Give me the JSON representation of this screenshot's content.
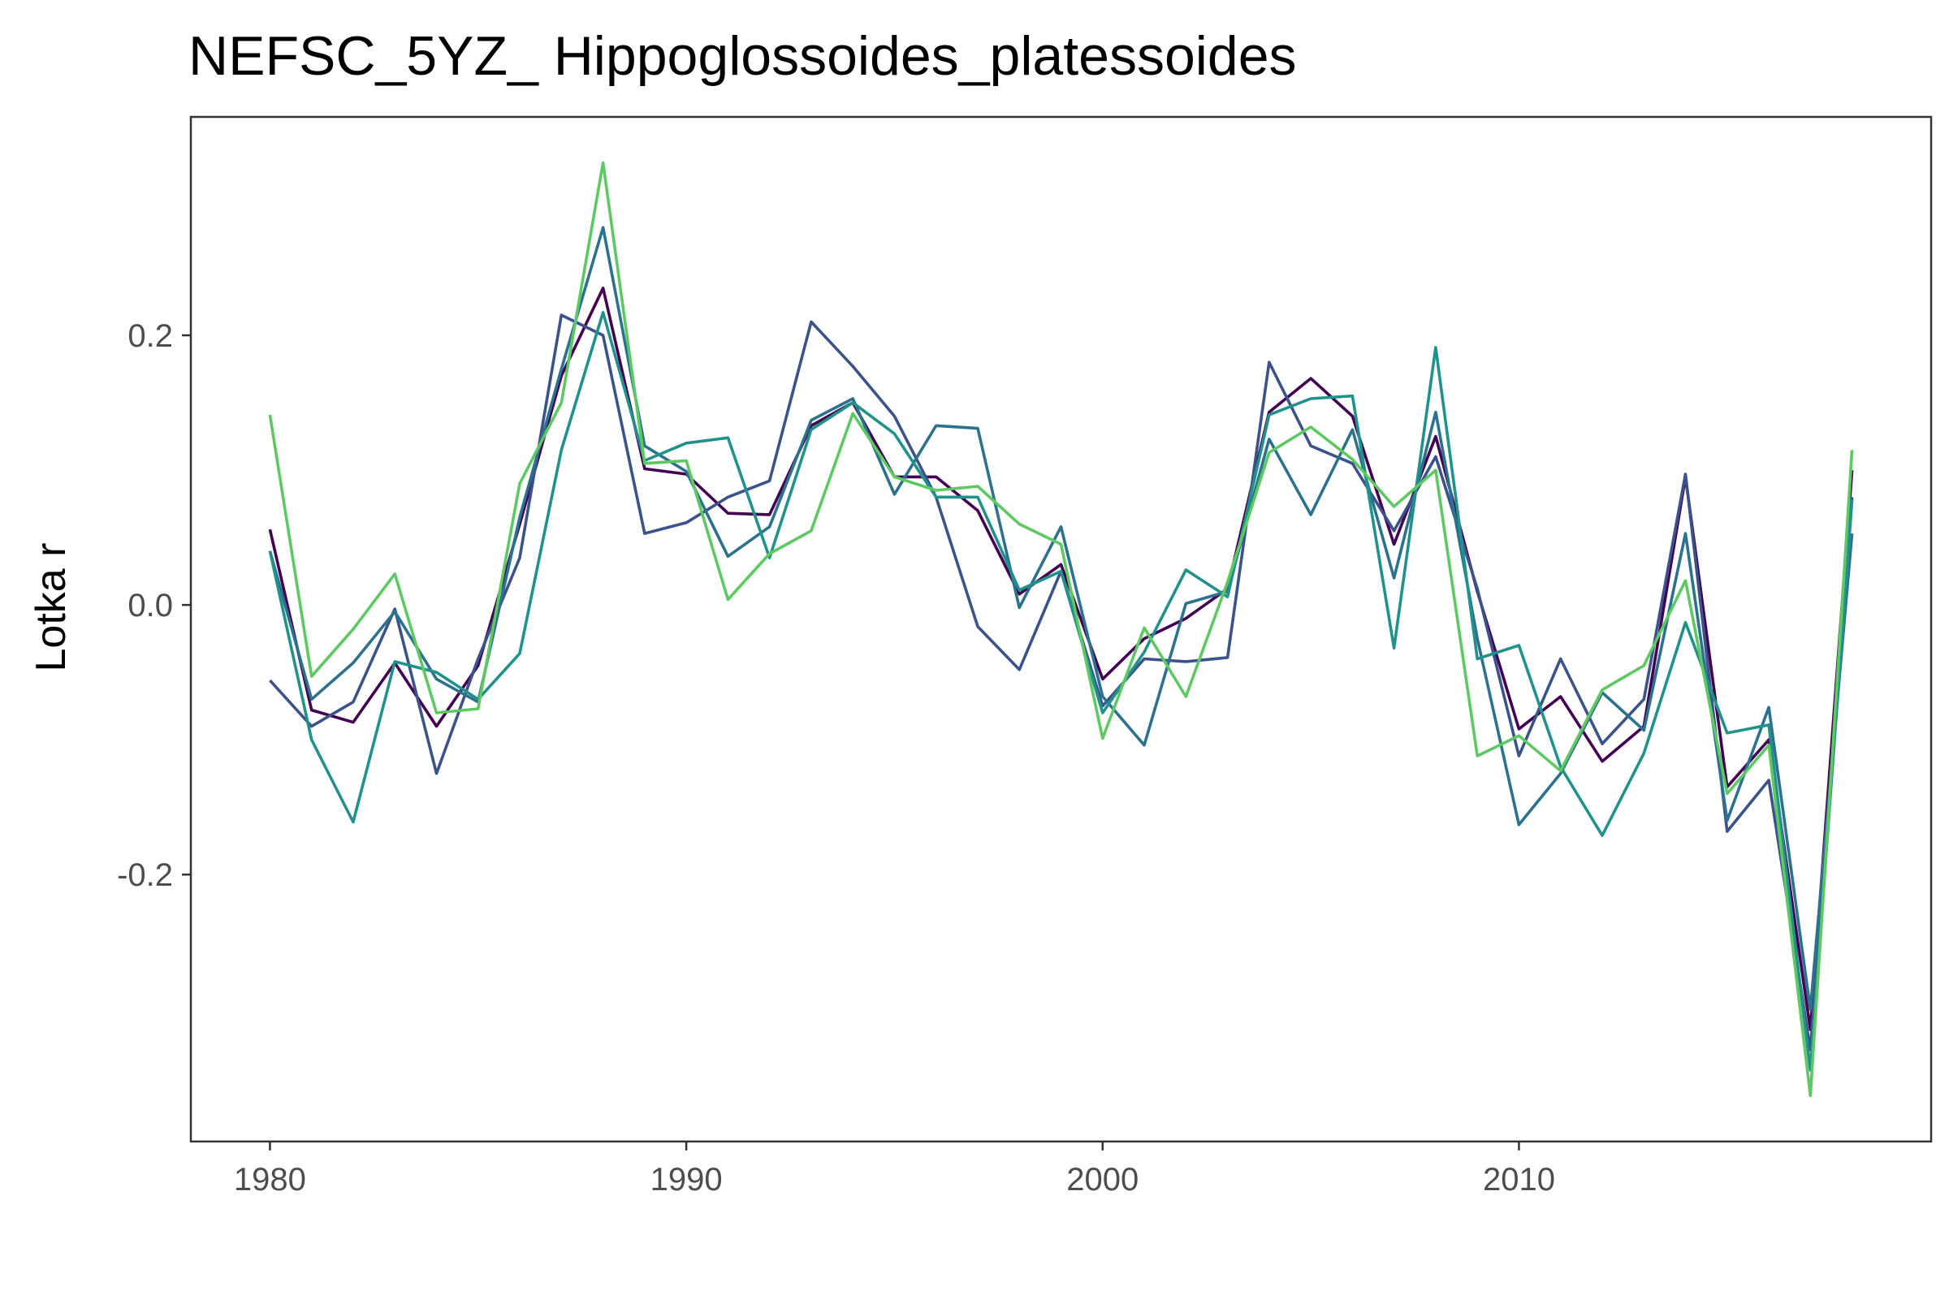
{
  "chart_data": {
    "type": "line",
    "title": "NEFSC_5YZ_ Hippoglossoides_platessoides",
    "xlabel": "",
    "ylabel": "Lotka r",
    "xlim": [
      1978.1,
      2019.9
    ],
    "ylim": [
      -0.398,
      0.362
    ],
    "x_ticks": [
      1980,
      1990,
      2000,
      2010
    ],
    "x_tick_labels": [
      "1980",
      "1990",
      "2000",
      "2010"
    ],
    "y_ticks": [
      -0.2,
      0.0,
      0.2
    ],
    "y_tick_labels": [
      "-0.2",
      "0.0",
      "0.2"
    ],
    "grid": false,
    "legend": "none",
    "x": [
      1980,
      1981,
      1982,
      1983,
      1984,
      1985,
      1986,
      1987,
      1988,
      1989,
      1990,
      1991,
      1992,
      1993,
      1994,
      1995,
      1996,
      1997,
      1998,
      1999,
      2000,
      2001,
      2002,
      2003,
      2004,
      2005,
      2006,
      2007,
      2008,
      2009,
      2010,
      2011,
      2012,
      2013,
      2014,
      2015,
      2016,
      2017,
      2018
    ],
    "series": [
      {
        "color": "#440154",
        "values": [
          0.056,
          -0.078,
          -0.087,
          -0.043,
          -0.09,
          -0.045,
          0.06,
          0.17,
          0.235,
          0.101,
          0.097,
          0.068,
          0.067,
          0.133,
          0.15,
          0.095,
          0.095,
          0.07,
          0.008,
          0.03,
          -0.055,
          -0.025,
          -0.01,
          0.012,
          0.143,
          0.168,
          0.14,
          0.045,
          0.125,
          0.01,
          -0.092,
          -0.068,
          -0.116,
          -0.09,
          0.095,
          -0.135,
          -0.1,
          -0.315,
          0.1
        ]
      },
      {
        "color": "#3b528b",
        "values": [
          -0.056,
          -0.09,
          -0.072,
          -0.003,
          -0.125,
          -0.04,
          0.035,
          0.215,
          0.2,
          0.053,
          0.061,
          0.08,
          0.092,
          0.21,
          0.177,
          0.14,
          0.08,
          -0.016,
          -0.048,
          0.025,
          -0.075,
          -0.04,
          -0.042,
          -0.039,
          0.18,
          0.118,
          0.105,
          0.055,
          0.11,
          0.012,
          -0.112,
          -0.04,
          -0.103,
          -0.07,
          0.097,
          -0.168,
          -0.13,
          -0.33,
          0.08
        ]
      },
      {
        "color": "#2c728e",
        "values": [
          0.04,
          -0.07,
          -0.043,
          -0.005,
          -0.055,
          -0.072,
          0.065,
          0.175,
          0.28,
          0.118,
          0.099,
          0.036,
          0.058,
          0.137,
          0.153,
          0.082,
          0.133,
          0.131,
          -0.002,
          0.058,
          -0.068,
          -0.104,
          0.001,
          0.01,
          0.123,
          0.067,
          0.13,
          0.02,
          0.143,
          -0.025,
          -0.163,
          -0.125,
          -0.065,
          -0.093,
          0.053,
          -0.16,
          -0.076,
          -0.3,
          0.053
        ]
      },
      {
        "color": "#21918c",
        "values": [
          0.04,
          -0.1,
          -0.161,
          -0.042,
          -0.05,
          -0.07,
          -0.036,
          0.115,
          0.217,
          0.107,
          0.12,
          0.124,
          0.035,
          0.13,
          0.15,
          0.127,
          0.08,
          0.08,
          0.011,
          0.025,
          -0.08,
          -0.035,
          0.026,
          0.006,
          0.141,
          0.153,
          0.155,
          -0.032,
          0.191,
          -0.04,
          -0.03,
          -0.12,
          -0.171,
          -0.11,
          -0.013,
          -0.095,
          -0.089,
          -0.345,
          0.078
        ]
      },
      {
        "color": "#5ec962",
        "values": [
          0.141,
          -0.053,
          -0.018,
          0.023,
          -0.08,
          -0.077,
          0.09,
          0.15,
          0.328,
          0.105,
          0.107,
          0.004,
          0.038,
          0.055,
          0.142,
          0.095,
          0.085,
          0.088,
          0.06,
          0.045,
          -0.099,
          -0.017,
          -0.068,
          0.017,
          0.113,
          0.132,
          0.108,
          0.073,
          0.1,
          -0.112,
          -0.097,
          -0.123,
          -0.063,
          -0.045,
          0.018,
          -0.14,
          -0.104,
          -0.364,
          0.115
        ]
      }
    ]
  }
}
